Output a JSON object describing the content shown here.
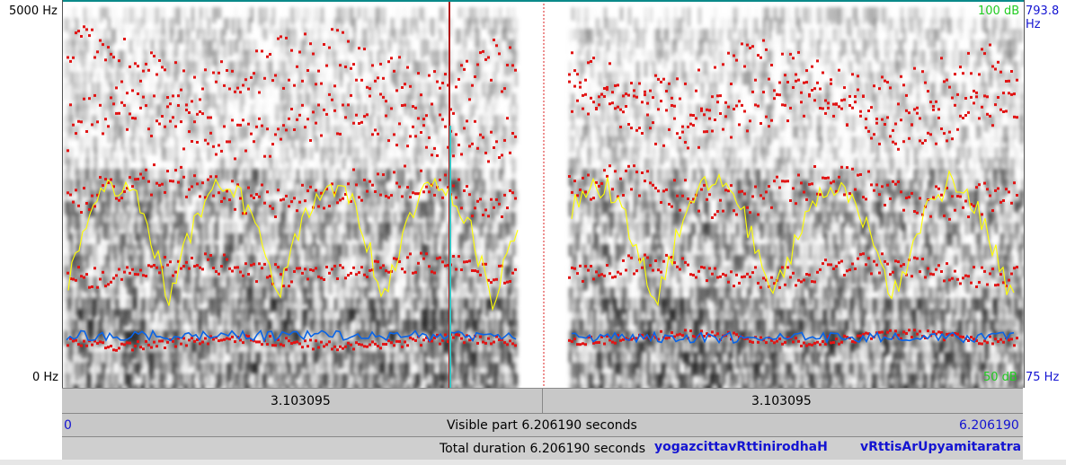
{
  "axis": {
    "freq_top": "5000 Hz",
    "freq_bottom": "0 Hz",
    "db_top": "100 dB",
    "db_bottom": "50 dB",
    "pitch_top": "793.8 Hz",
    "pitch_bottom": "75 Hz"
  },
  "segments": {
    "left_duration": "3.103095",
    "right_duration": "3.103095"
  },
  "visible": {
    "start": "0",
    "label": "Visible part 6.206190 seconds",
    "end": "6.206190"
  },
  "total": {
    "label": "Total duration 6.206190 seconds",
    "transcript_1": "yogazcittavRttinirodhaH",
    "transcript_2": "vRttisArUpyamitaratra"
  },
  "colors": {
    "formant": "#e11515",
    "pitch": "#ffff00",
    "intensity": "#0a64e6",
    "cursor": "#b01a1a"
  }
}
